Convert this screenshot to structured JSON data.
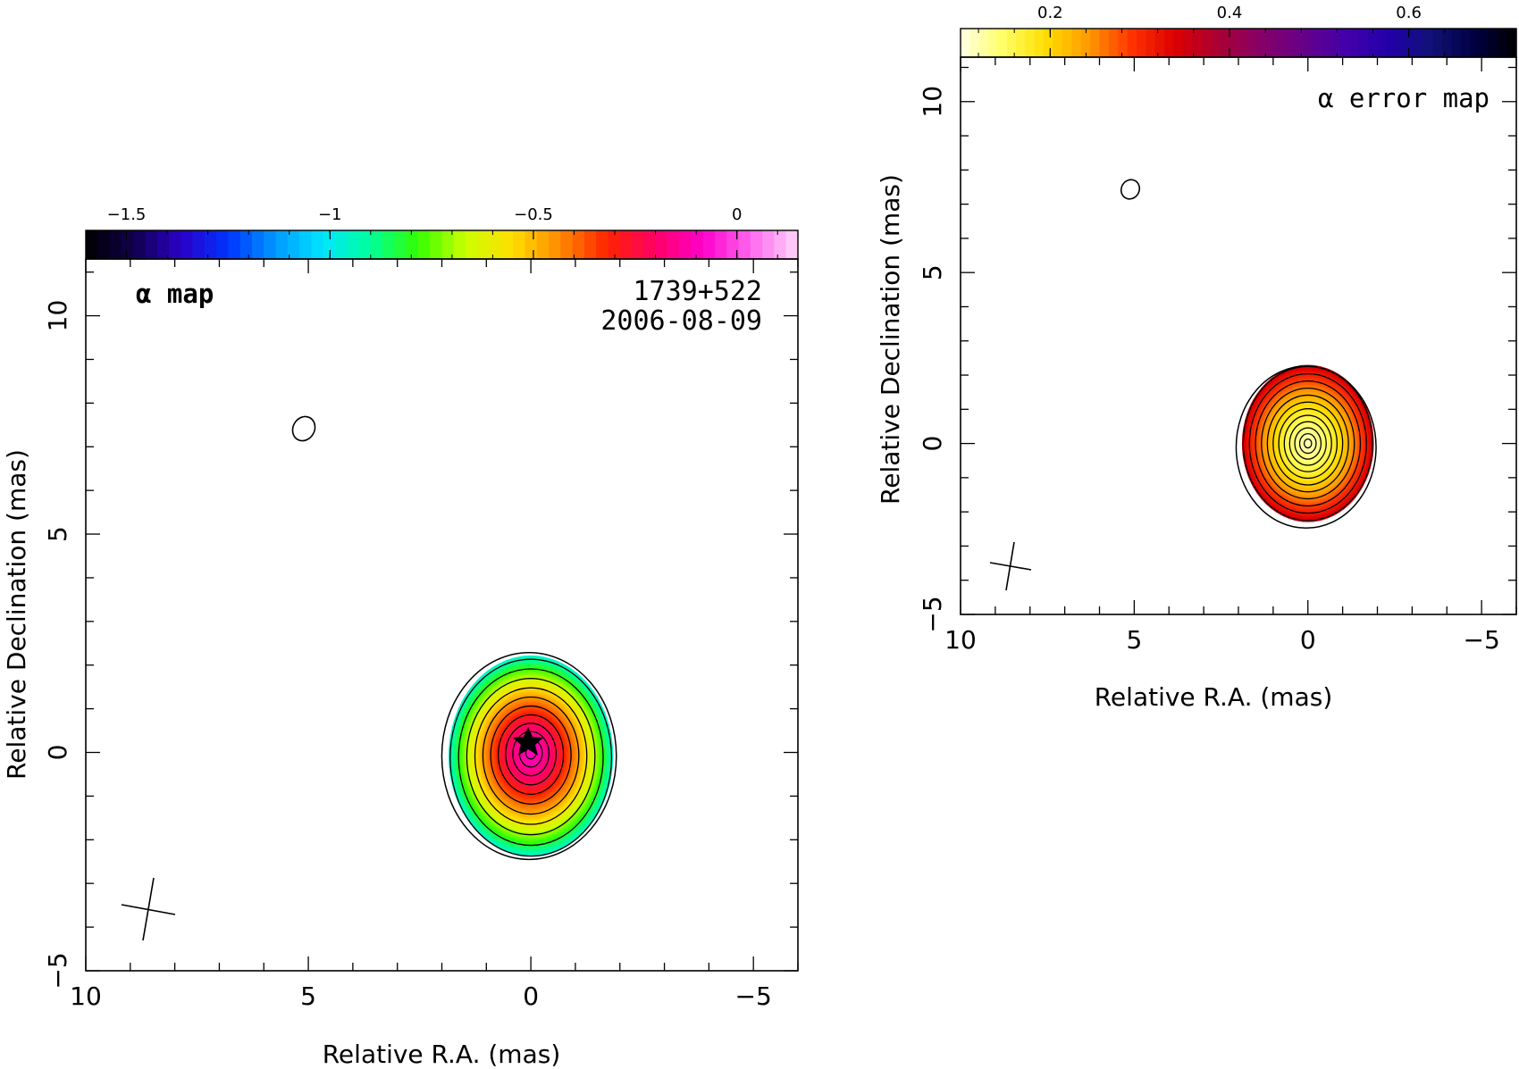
{
  "chart_data": [
    {
      "type": "heatmap",
      "title": "α map",
      "source_name": "1739+522",
      "epoch": "2006-08-09",
      "xlabel": "Relative R.A. (mas)",
      "ylabel": "Relative Declination (mas)",
      "xlim": [
        10,
        -6
      ],
      "ylim": [
        -5,
        11.3
      ],
      "x_ticks": [
        10,
        5,
        0,
        -5
      ],
      "x_tick_labels": [
        "10",
        "5",
        "0",
        "−5"
      ],
      "y_ticks": [
        -5,
        0,
        5,
        10
      ],
      "y_tick_labels": [
        "−5",
        "0",
        "5",
        "10"
      ],
      "colorbar": {
        "range": [
          -1.6,
          0.15
        ],
        "ticks": [
          -1.5,
          -1,
          -0.5,
          0
        ],
        "tick_labels": [
          "−1.5",
          "−1",
          "−0.5",
          "0"
        ],
        "palette": [
          "#000000",
          "#10004a",
          "#2a00c8",
          "#0033ff",
          "#0099ff",
          "#00e6ff",
          "#00ff99",
          "#33ff00",
          "#ccff00",
          "#ffdd00",
          "#ff8800",
          "#ff2200",
          "#ff0066",
          "#ff00cc",
          "#ff66ee",
          "#ffd6fa"
        ]
      },
      "core_marker": {
        "x": 0,
        "y": 0
      },
      "source_extent": {
        "east_mas": 1.8,
        "west_mas": -1.9,
        "north_mas": 2.3,
        "south_mas": -2.3
      },
      "alpha_core": -0.1,
      "alpha_edge": -0.95,
      "contours_count": 11
    },
    {
      "type": "heatmap",
      "title": "α error map",
      "xlabel": "Relative R.A. (mas)",
      "ylabel": "Relative Declination (mas)",
      "xlim": [
        10,
        -6
      ],
      "ylim": [
        -5,
        11.3
      ],
      "x_ticks": [
        10,
        5,
        0,
        -5
      ],
      "x_tick_labels": [
        "10",
        "5",
        "0",
        "−5"
      ],
      "y_ticks": [
        -5,
        0,
        5,
        10
      ],
      "y_tick_labels": [
        "−5",
        "0",
        "5",
        "10"
      ],
      "colorbar": {
        "range": [
          0.1,
          0.72
        ],
        "ticks": [
          0.2,
          0.4,
          0.6
        ],
        "tick_labels": [
          "0.2",
          "0.4",
          "0.6"
        ],
        "palette": [
          "#ffffe6",
          "#ffff66",
          "#ffdd00",
          "#ff9900",
          "#ff3300",
          "#dd0000",
          "#aa0033",
          "#880066",
          "#660088",
          "#4400aa",
          "#2200aa",
          "#111177",
          "#000044",
          "#000000"
        ]
      },
      "source_extent": {
        "east_mas": 1.9,
        "west_mas": -1.9,
        "north_mas": 2.3,
        "south_mas": -2.3
      },
      "error_core": 0.12,
      "error_edge": 0.35,
      "contours_count": 12
    }
  ]
}
